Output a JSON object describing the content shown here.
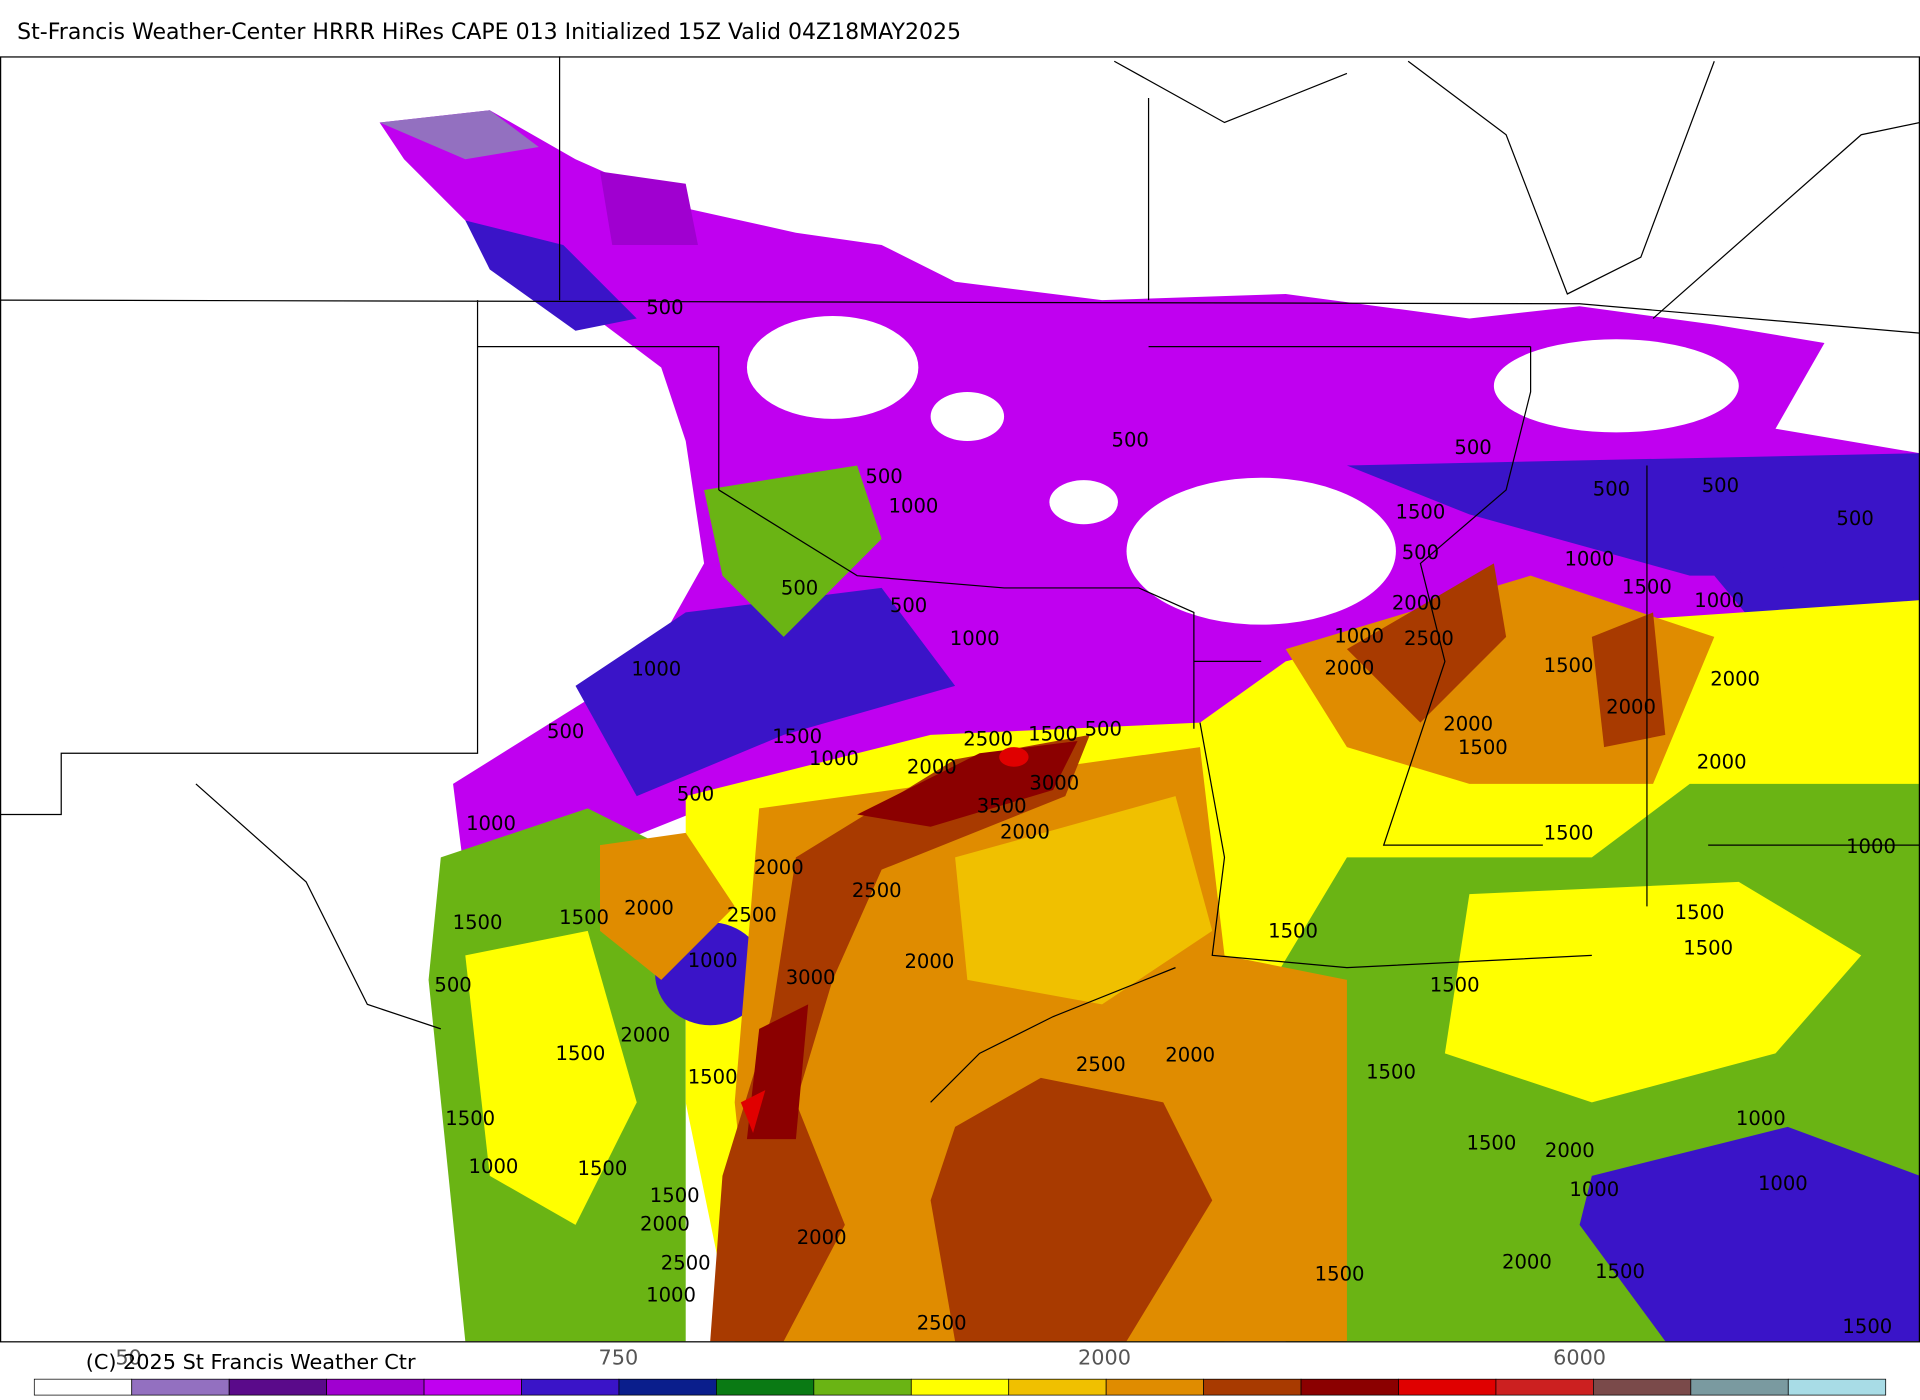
{
  "header": {
    "title": "St-Francis Weather-Center HRRR HiRes CAPE  013 Initialized  15Z Valid 04Z18MAY2025"
  },
  "map": {
    "contour_labels": [
      "500",
      "500",
      "500",
      "500",
      "1000",
      "1500",
      "500",
      "500",
      "500",
      "500",
      "1000",
      "500",
      "500",
      "1500",
      "1000",
      "2000",
      "1000",
      "2500",
      "1000",
      "1000",
      "2000",
      "1500",
      "2000",
      "2000",
      "2000",
      "1500",
      "500",
      "1500",
      "2500",
      "1500",
      "500",
      "1000",
      "2000",
      "2000",
      "3000",
      "500",
      "3500",
      "1000",
      "2000",
      "1500",
      "1000",
      "2000",
      "2500",
      "2000",
      "2500",
      "1500",
      "1500",
      "1500",
      "1500",
      "1500",
      "1000",
      "2000",
      "3000",
      "500",
      "1500",
      "2000",
      "1500",
      "2000",
      "2500",
      "1500",
      "1500",
      "1500",
      "1000",
      "1500",
      "2000",
      "1000",
      "1500",
      "1000",
      "1000",
      "1500",
      "2000",
      "2000",
      "2000",
      "2500",
      "1500",
      "1500",
      "1000",
      "2500",
      "1500"
    ]
  },
  "colorbar": {
    "colors": [
      "#ffffff",
      "#9370c0",
      "#5a0a8a",
      "#a000d0",
      "#c000f0",
      "#3a14c8",
      "#0a1e8c",
      "#0a7a14",
      "#6ab414",
      "#ffff00",
      "#f0c000",
      "#e08c00",
      "#a83a00",
      "#8b0000",
      "#e00000",
      "#cc2020",
      "#7a4a4a",
      "#7a9aa0",
      "#a8dce6"
    ],
    "tick_labels": [
      "50",
      "750",
      "2000",
      "6000"
    ]
  },
  "footer": {
    "copyright": "(C) 2025 St Francis Weather Ctr"
  }
}
